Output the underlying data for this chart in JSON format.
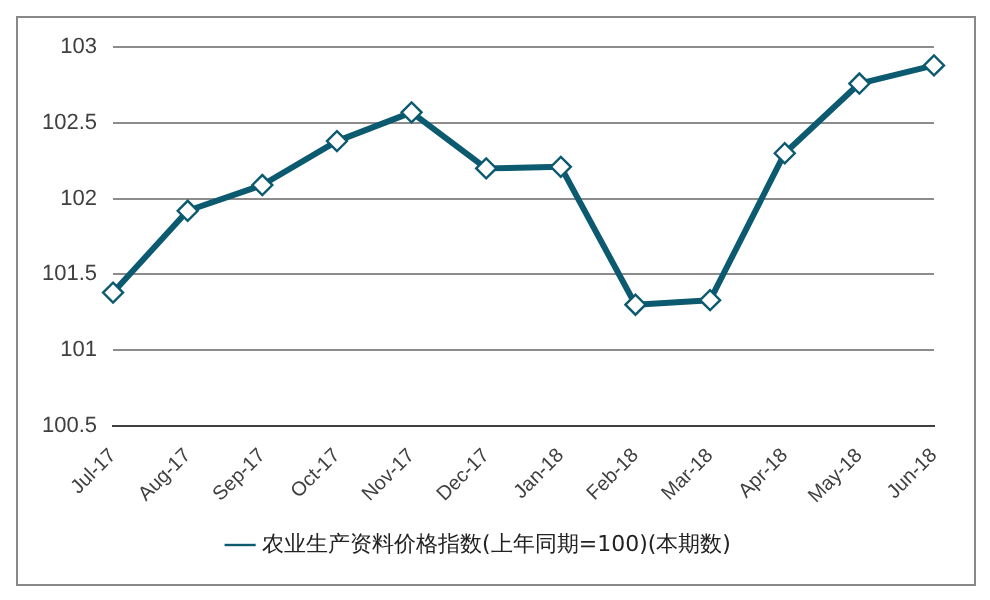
{
  "chart_data": {
    "type": "line",
    "categories": [
      "Jul-17",
      "Aug-17",
      "Sep-17",
      "Oct-17",
      "Nov-17",
      "Dec-17",
      "Jan-18",
      "Feb-18",
      "Mar-18",
      "Apr-18",
      "May-18",
      "Jun-18"
    ],
    "series": [
      {
        "name": "农业生产资料价格指数(上年同期=100)(本期数)",
        "color": "#0b5a70",
        "values": [
          101.38,
          101.92,
          102.09,
          102.38,
          102.57,
          102.2,
          102.21,
          101.3,
          101.33,
          102.3,
          102.76,
          102.88
        ]
      }
    ],
    "ylim": [
      100.5,
      103
    ],
    "yticks": [
      100.5,
      101,
      101.5,
      102,
      102.5,
      103
    ],
    "grid": "y",
    "legend": "bottom",
    "marker": "diamond",
    "line_style": "solid"
  }
}
